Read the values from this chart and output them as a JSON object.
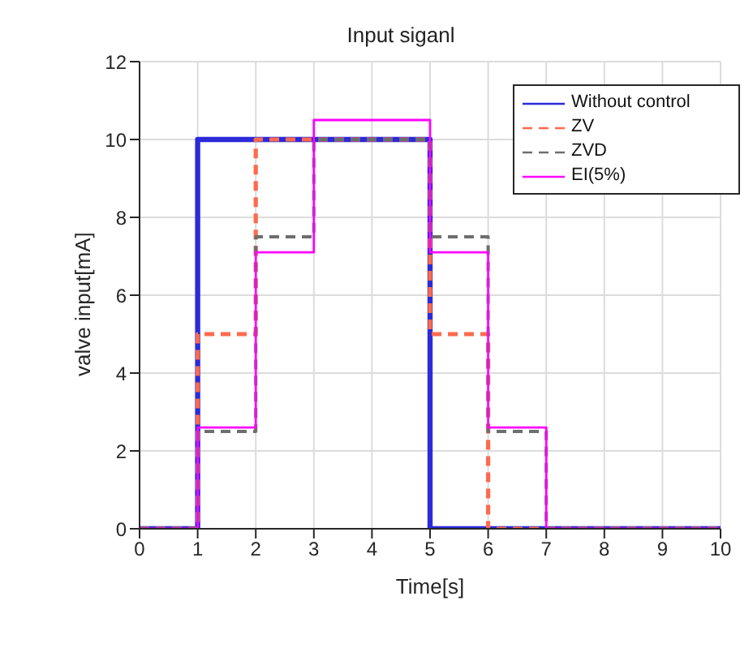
{
  "chart_data": {
    "type": "step",
    "title": "Input siganl",
    "xlabel": "Time[s]",
    "ylabel": "valve input[mA]",
    "xlim": [
      0,
      10
    ],
    "xticks": [
      0,
      1,
      2,
      3,
      4,
      5,
      6,
      7,
      8,
      9,
      10
    ],
    "ylim": [
      0,
      12
    ],
    "yticks": [
      0,
      2,
      4,
      6,
      8,
      10,
      12
    ],
    "grid": true,
    "legend": "top right",
    "series": [
      {
        "name": "Without control",
        "color": "#2b2bd9",
        "line_style": "solid",
        "x": [
          0,
          1,
          5,
          10
        ],
        "values": [
          0,
          10,
          0,
          0
        ]
      },
      {
        "name": "ZV",
        "color": "#ff6a4d",
        "line_style": "dashed",
        "x": [
          0,
          1,
          2,
          5,
          6,
          10
        ],
        "values": [
          0,
          5,
          10,
          5,
          0,
          0
        ]
      },
      {
        "name": "ZVD",
        "color": "#6e6e6e",
        "line_style": "dashed",
        "x": [
          0,
          1,
          2,
          3,
          5,
          6,
          7,
          10
        ],
        "values": [
          0,
          2.5,
          7.5,
          10,
          7.5,
          2.5,
          0,
          0
        ]
      },
      {
        "name": "EI(5%)",
        "color": "#ff00ff",
        "line_style": "solid",
        "x": [
          0,
          1,
          2,
          3,
          5,
          6,
          7,
          10
        ],
        "values": [
          0,
          2.6,
          7.1,
          10.5,
          7.1,
          2.6,
          0,
          0
        ]
      }
    ]
  }
}
